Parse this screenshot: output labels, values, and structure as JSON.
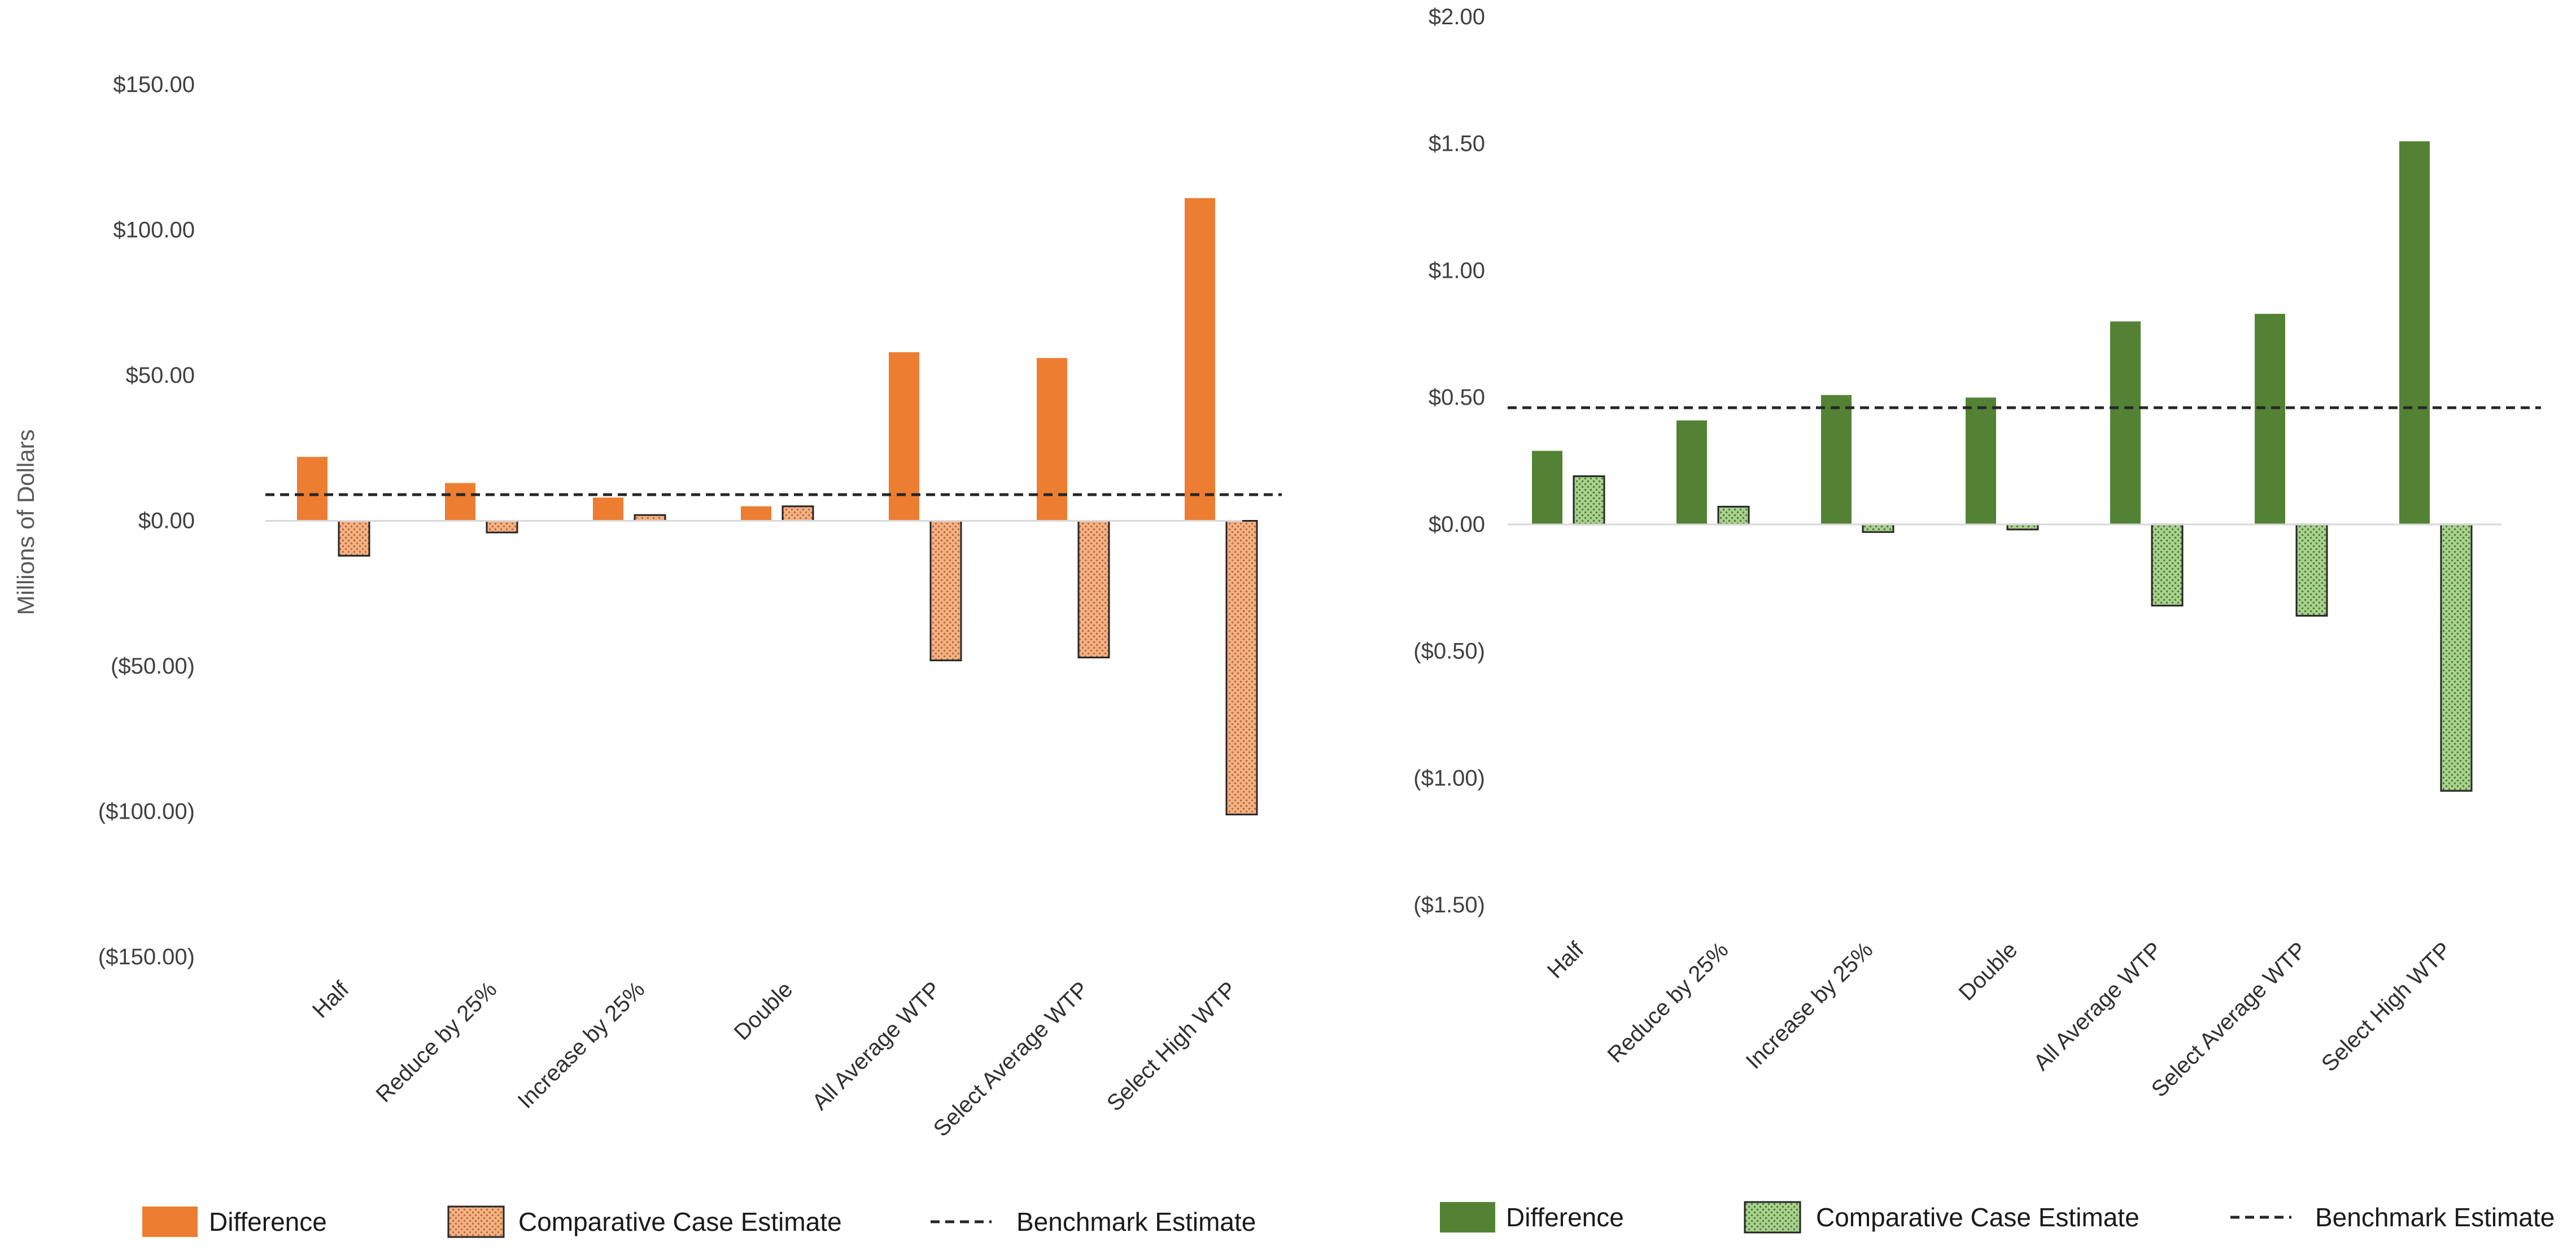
{
  "chart_data": [
    {
      "type": "bar",
      "title": "",
      "xlabel": "",
      "ylabel": "Millions of Dollars",
      "ylim": [
        -150,
        150
      ],
      "ytick_values": [
        150,
        100,
        50,
        0,
        -50,
        -100,
        -150
      ],
      "ytick_labels": [
        "$150.00",
        "$100.00",
        "$50.00",
        "$0.00",
        "($50.00)",
        "($100.00)",
        "($150.00)"
      ],
      "categories": [
        "Half",
        "Reduce by 25%",
        "Increase by 25%",
        "Double",
        "All Average WTP",
        "Select Average WTP",
        "Select High WTP"
      ],
      "series": [
        {
          "name": "Difference",
          "values": [
            22,
            13,
            8,
            5,
            58,
            56,
            111
          ],
          "color": "#ED7D31",
          "pattern": "solid"
        },
        {
          "name": "Comparative Case Estimate",
          "values": [
            -12,
            -4,
            2,
            5,
            -48,
            -47,
            -101
          ],
          "color": "#F4B183",
          "pattern": "dotted"
        }
      ],
      "benchmark": {
        "name": "Benchmark Estimate",
        "value": 9
      },
      "legend": [
        "Difference",
        "Comparative Case Estimate",
        "Benchmark Estimate"
      ],
      "grid": false
    },
    {
      "type": "bar",
      "title": "",
      "xlabel": "",
      "ylabel": "",
      "ylim": [
        -1.5,
        2.0
      ],
      "ytick_values": [
        2.0,
        1.5,
        1.0,
        0.5,
        0.0,
        -0.5,
        -1.0,
        -1.5
      ],
      "ytick_labels": [
        "$2.00",
        "$1.50",
        "$1.00",
        "$0.50",
        "$0.00",
        "($0.50)",
        "($1.00)",
        "($1.50)"
      ],
      "categories": [
        "Half",
        "Reduce by 25%",
        "Increase by 25%",
        "Double",
        "All Average WTP",
        "Select Average WTP",
        "Select High WTP"
      ],
      "series": [
        {
          "name": "Difference",
          "values": [
            0.29,
            0.41,
            0.51,
            0.5,
            0.8,
            0.83,
            1.51
          ],
          "color": "#548235",
          "pattern": "solid"
        },
        {
          "name": "Comparative Case Estimate",
          "values": [
            0.19,
            0.07,
            -0.03,
            -0.02,
            -0.32,
            -0.36,
            -1.05
          ],
          "color": "#A9D18E",
          "pattern": "dotted"
        }
      ],
      "benchmark": {
        "name": "Benchmark Estimate",
        "value": 0.46
      },
      "legend": [
        "Difference",
        "Comparative Case Estimate",
        "Benchmark Estimate"
      ],
      "grid": false
    }
  ]
}
